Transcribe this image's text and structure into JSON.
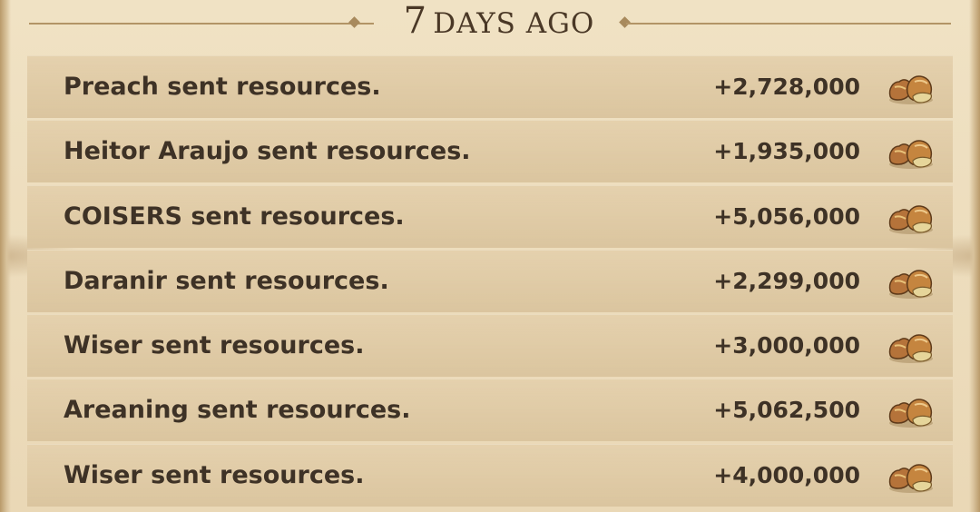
{
  "header": {
    "title_number": "7",
    "title_text": "DAYS AGO"
  },
  "rows": [
    {
      "label": "Preach sent resources.",
      "amount": "+2,728,000",
      "icon": "resource-sacks-icon"
    },
    {
      "label": "Heitor Araujo sent resources.",
      "amount": "+1,935,000",
      "icon": "resource-sacks-icon"
    },
    {
      "label": "COISERS sent resources.",
      "amount": "+5,056,000",
      "icon": "resource-sacks-icon"
    },
    {
      "label": "Daranir sent resources.",
      "amount": "+2,299,000",
      "icon": "resource-sacks-icon"
    },
    {
      "label": "Wiser sent resources.",
      "amount": "+3,000,000",
      "icon": "resource-sacks-icon"
    },
    {
      "label": "Areaning sent resources.",
      "amount": "+5,062,500",
      "icon": "resource-sacks-icon"
    },
    {
      "label": "Wiser sent resources.",
      "amount": "+4,000,000",
      "icon": "resource-sacks-icon"
    }
  ],
  "colors": {
    "parchment": "#ecdcbc",
    "row_background": "#dfc9a2",
    "text": "#3e3226",
    "rule": "#b29466"
  }
}
